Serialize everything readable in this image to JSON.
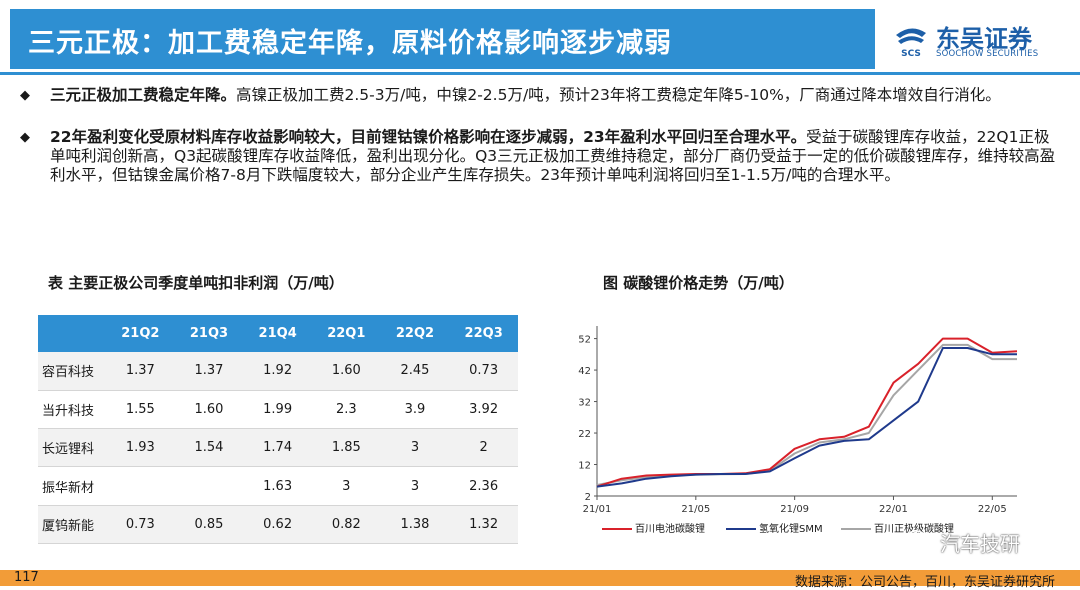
{
  "title": "三元正极：加工费稳定年降，原料价格影响逐步减弱",
  "logo": {
    "cn": "东吴证券",
    "en": "SOOCHOW SECURITIES",
    "mark": "SCS"
  },
  "bullets": [
    {
      "icon": "◆",
      "bold": "三元正极加工费稳定年降。",
      "text": "高镍正极加工费2.5-3万/吨，中镍2-2.5万/吨，预计23年将工费稳定年降5-10%，厂商通过降本增效自行消化。"
    },
    {
      "icon": "◆",
      "bold": "22年盈利变化受原材料库存收益影响较大，目前锂钴镍价格影响在逐步减弱，23年盈利水平回归至合理水平。",
      "text": "受益于碳酸锂库存收益，22Q1正极单吨利润创新高，Q3起碳酸锂库存收益降低，盈利出现分化。Q3三元正极加工费维持稳定，部分厂商仍受益于一定的低价碳酸锂库存，维持较高盈利水平，但钴镍金属价格7-8月下跌幅度较大，部分企业产生库存损失。23年预计单吨利润将回归至1-1.5万/吨的合理水平。"
    }
  ],
  "table": {
    "caption": "表 主要正极公司季度单吨扣非利润（万/吨）",
    "headers": [
      "",
      "21Q2",
      "21Q3",
      "21Q4",
      "22Q1",
      "22Q2",
      "22Q3"
    ],
    "rows": [
      [
        "容百科技",
        "1.37",
        "1.37",
        "1.92",
        "1.60",
        "2.45",
        "0.73"
      ],
      [
        "当升科技",
        "1.55",
        "1.60",
        "1.99",
        "2.3",
        "3.9",
        "3.92"
      ],
      [
        "长远锂科",
        "1.93",
        "1.54",
        "1.74",
        "1.85",
        "3",
        "2"
      ],
      [
        "振华新材",
        "",
        "",
        "1.63",
        "3",
        "3",
        "2.36"
      ],
      [
        "厦钨新能",
        "0.73",
        "0.85",
        "0.62",
        "0.82",
        "1.38",
        "1.32"
      ]
    ]
  },
  "chart_caption": "图  碳酸锂价格走势（万/吨）",
  "chart_data": {
    "type": "line",
    "title": "",
    "xlabel": "",
    "ylabel": "",
    "x_ticks": [
      "21/01",
      "21/05",
      "21/09",
      "22/01",
      "22/05"
    ],
    "y_ticks": [
      2,
      12,
      22,
      32,
      42,
      52
    ],
    "ylim": [
      2,
      56
    ],
    "x": [
      "21/01",
      "21/02",
      "21/03",
      "21/04",
      "21/05",
      "21/06",
      "21/07",
      "21/08",
      "21/09",
      "21/10",
      "21/11",
      "21/12",
      "22/01",
      "22/02",
      "22/03",
      "22/04",
      "22/05",
      "22/06"
    ],
    "series": [
      {
        "name": "百川电池碳酸锂",
        "color": "#d9212a",
        "values": [
          5.0,
          7.5,
          8.5,
          8.8,
          9.0,
          9.0,
          9.2,
          10.5,
          17.0,
          20.0,
          20.8,
          24.0,
          38.0,
          44.0,
          52.0,
          52.0,
          47.5,
          48.0
        ]
      },
      {
        "name": "氢氧化锂SMM",
        "color": "#1f3a8c",
        "values": [
          5.0,
          6.0,
          7.5,
          8.3,
          8.8,
          9.0,
          9.0,
          9.8,
          14.0,
          18.0,
          19.5,
          20.0,
          26.0,
          32.0,
          49.0,
          49.0,
          47.0,
          47.0
        ]
      },
      {
        "name": "百川正极级碳酸锂",
        "color": "#a6a6a6",
        "values": [
          5.5,
          7.0,
          8.0,
          8.5,
          8.8,
          8.9,
          9.0,
          10.0,
          15.5,
          19.0,
          20.0,
          22.0,
          34.0,
          42.0,
          50.0,
          50.0,
          45.5,
          45.5
        ]
      }
    ],
    "legend_position": "bottom"
  },
  "watermark": "汽车技研",
  "footer": {
    "page_number": "117",
    "source": "数据来源：公司公告，百川，东吴证券研究所"
  },
  "colors": {
    "title_bg": "#2e8fd2",
    "footer_bg": "#f29c38",
    "logo_blue": "#1d5fa8"
  }
}
